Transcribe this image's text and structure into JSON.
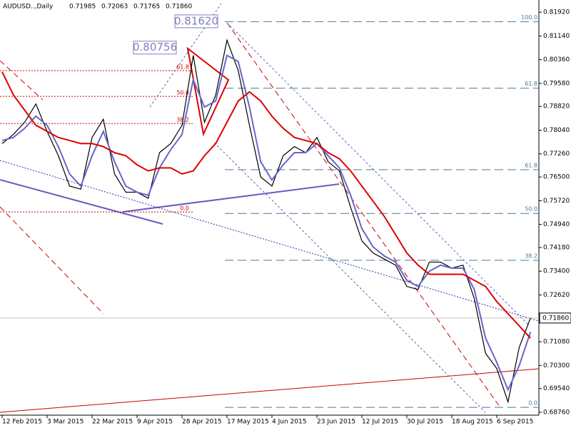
{
  "chart_data": {
    "type": "line",
    "title": "AUDUSD..,Daily",
    "ohlc": [
      {
        "value": 0.71985,
        "label": "0.71985"
      },
      {
        "value": 0.72063,
        "label": "0.72063"
      },
      {
        "value": 0.71765,
        "label": "0.71765"
      },
      {
        "value": 0.7186,
        "label": "0.71860"
      }
    ],
    "categories": [
      "12 Feb 2015",
      null,
      null,
      null,
      "3 Mar 2015",
      null,
      null,
      null,
      "22 Mar 2015",
      null,
      null,
      null,
      "9 Apr 2015",
      null,
      null,
      null,
      "28 Apr 2015",
      null,
      null,
      null,
      "17 May 2015",
      null,
      null,
      null,
      "4 Jun 2015",
      null,
      null,
      null,
      "23 Jun 2015",
      null,
      null,
      null,
      "12 Jul 2015",
      null,
      null,
      null,
      "30 Jul 2015",
      null,
      null,
      null,
      "18 Aug 2015",
      null,
      null,
      null,
      "6 Sep 2015",
      null,
      null,
      null
    ],
    "series": [
      {
        "color": "#000000",
        "values": [
          0.776,
          0.779,
          0.783,
          0.789,
          0.78,
          0.772,
          0.762,
          0.761,
          0.778,
          0.784,
          0.766,
          0.76,
          0.76,
          0.758,
          0.773,
          0.776,
          0.782,
          0.805,
          0.783,
          0.792,
          0.81,
          0.8,
          0.782,
          0.765,
          0.762,
          0.772,
          0.775,
          0.773,
          0.778,
          0.77,
          0.767,
          0.755,
          0.744,
          0.74,
          0.738,
          0.736,
          0.729,
          0.728,
          0.737,
          0.737,
          0.735,
          0.736,
          0.725,
          0.707,
          0.702,
          0.691,
          0.709,
          0.7186
        ]
      },
      {
        "color": "#6666cc",
        "values": [
          0.777,
          0.778,
          0.781,
          0.785,
          0.782,
          0.775,
          0.766,
          0.762,
          0.772,
          0.78,
          0.77,
          0.762,
          0.76,
          0.759,
          0.768,
          0.774,
          0.779,
          0.797,
          0.788,
          0.79,
          0.805,
          0.803,
          0.788,
          0.77,
          0.764,
          0.769,
          0.773,
          0.773,
          0.776,
          0.772,
          0.768,
          0.759,
          0.748,
          0.742,
          0.739,
          0.737,
          0.731,
          0.729,
          0.734,
          0.736,
          0.735,
          0.735,
          0.728,
          0.712,
          0.704,
          0.695,
          0.703,
          0.714
        ]
      },
      {
        "color": "#dd0000",
        "values": [
          0.7996,
          0.792,
          0.787,
          0.782,
          0.78,
          0.778,
          0.777,
          0.776,
          0.776,
          0.775,
          0.773,
          0.772,
          0.769,
          0.767,
          0.768,
          0.768,
          0.766,
          0.767,
          0.772,
          0.776,
          0.783,
          0.79,
          0.793,
          0.79,
          0.785,
          0.781,
          0.778,
          0.777,
          0.776,
          0.773,
          0.771,
          0.767,
          0.762,
          0.757,
          0.752,
          0.746,
          0.74,
          0.736,
          0.733,
          0.733,
          0.733,
          0.733,
          0.731,
          0.729,
          0.724,
          0.72,
          0.716,
          0.712
        ]
      }
    ],
    "ylim": [
      0.68665,
      0.82275
    ],
    "yticks": [
      {
        "value": 0.8192,
        "label": "0.81920"
      },
      {
        "value": 0.8114,
        "label": "0.81140"
      },
      {
        "value": 0.8036,
        "label": "0.80360"
      },
      {
        "value": 0.7958,
        "label": "0.79580"
      },
      {
        "value": 0.7882,
        "label": "0.78820"
      },
      {
        "value": 0.7804,
        "label": "0.78040"
      },
      {
        "value": 0.7726,
        "label": "0.77260"
      },
      {
        "value": 0.765,
        "label": "0.76500"
      },
      {
        "value": 0.7572,
        "label": "0.75720"
      },
      {
        "value": 0.7494,
        "label": "0.74940"
      },
      {
        "value": 0.7418,
        "label": "0.74180"
      },
      {
        "value": 0.734,
        "label": "0.73400"
      },
      {
        "value": 0.7262,
        "label": "0.72620"
      },
      {
        "value": 0.7108,
        "label": "0.71080"
      },
      {
        "value": 0.703,
        "label": "0.70300"
      },
      {
        "value": 0.6954,
        "label": "0.69540"
      },
      {
        "value": 0.6876,
        "label": "0.68760"
      }
    ],
    "last_price": {
      "value": 0.7186,
      "label": "0.71860"
    },
    "price_boxes": [
      {
        "value": 0.8162,
        "label": "0.81620"
      },
      {
        "value": 0.80756,
        "label": "0.80756"
      }
    ],
    "fib_left": [
      {
        "value": 0.8,
        "label": "61.8"
      },
      {
        "value": 0.7915,
        "label": "50.0"
      },
      {
        "value": 0.7826,
        "label": "38.2"
      },
      {
        "value": 0.7535,
        "label": "0.0"
      }
    ],
    "fib_right": [
      {
        "value": 0.8161,
        "label": "100.0"
      },
      {
        "value": 0.7942,
        "label": "61.8"
      },
      {
        "value": 0.7674,
        "label": "61.8"
      },
      {
        "value": 0.753,
        "label": "50.0"
      },
      {
        "value": 0.7376,
        "label": "38.2"
      },
      {
        "value": 0.6892,
        "label": "0.0"
      }
    ]
  }
}
